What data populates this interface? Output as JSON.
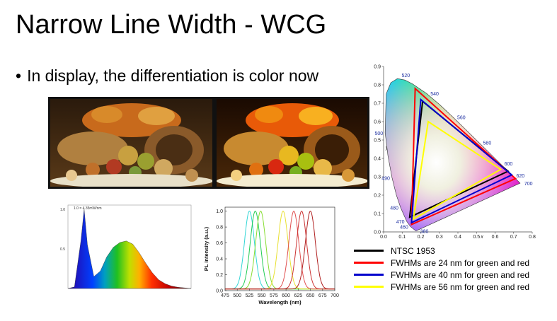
{
  "slide": {
    "title": "Narrow Line Width - WCG",
    "bullet": "In display, the differentiation is color now"
  },
  "photos": [
    {
      "name": "photo-standard-gamut",
      "subject": "autumn-fruit-cornucopia"
    },
    {
      "name": "photo-wide-color-gamut",
      "subject": "autumn-fruit-cornucopia"
    }
  ],
  "colors": {
    "ntsc": "#000000",
    "fwhm24": "#ff0000",
    "fwhm40": "#0000cc",
    "fwhm56": "#ffff00"
  },
  "chart_data": [
    {
      "type": "line",
      "name": "led-spectrum",
      "note": "broad phosphor white LED spectrum with blue peak; tick labels illegible at this resolution",
      "x": [
        400,
        420,
        440,
        450,
        460,
        480,
        500,
        520,
        540,
        560,
        580,
        600,
        620,
        640,
        660,
        680,
        700,
        720,
        740,
        780
      ],
      "values": [
        0.0,
        0.02,
        0.6,
        1.0,
        0.55,
        0.15,
        0.22,
        0.4,
        0.52,
        0.58,
        0.6,
        0.56,
        0.45,
        0.32,
        0.2,
        0.11,
        0.06,
        0.03,
        0.015,
        0.0
      ],
      "y_ticks": [
        "1.0",
        "0.5"
      ],
      "annotation": "1.0 = 4.35mW/nm"
    },
    {
      "type": "line",
      "name": "quantum-dot-pl-spectra",
      "ylabel": "PL intensity (a.u.)",
      "xlabel": "Wavelength (nm)",
      "xlim": [
        475,
        700
      ],
      "ylim": [
        0.0,
        1.05
      ],
      "x_ticks": [
        475,
        500,
        525,
        550,
        575,
        600,
        625,
        650,
        675,
        700
      ],
      "y_ticks": [
        "0.0",
        "0.2",
        "0.4",
        "0.6",
        "0.8",
        "1.0"
      ],
      "series": [
        {
          "peak": 525,
          "fwhm": 24,
          "color": "#33d6d6"
        },
        {
          "peak": 537,
          "fwhm": 24,
          "color": "#22cc55"
        },
        {
          "peak": 548,
          "fwhm": 24,
          "color": "#88dd33"
        },
        {
          "peak": 594,
          "fwhm": 24,
          "color": "#e8e030"
        },
        {
          "peak": 616,
          "fwhm": 24,
          "color": "#e05050"
        },
        {
          "peak": 632,
          "fwhm": 24,
          "color": "#cc3333"
        },
        {
          "peak": 650,
          "fwhm": 24,
          "color": "#b02020"
        }
      ]
    },
    {
      "type": "scatter",
      "name": "cie-1931-chromaticity",
      "xlabel": "x",
      "ylabel": "y",
      "xlim": [
        0.0,
        0.8
      ],
      "ylim": [
        0.0,
        0.9
      ],
      "x_ticks": [
        "0.0",
        "0.1",
        "0.2",
        "0.3",
        "0.4",
        "0.5",
        "0.6",
        "0.7",
        "0.8"
      ],
      "y_ticks": [
        "0.0",
        "0.1",
        "0.2",
        "0.3",
        "0.4",
        "0.5",
        "0.6",
        "0.7",
        "0.8",
        "0.9"
      ],
      "locus": [
        [
          0.1741,
          0.005
        ],
        [
          0.144,
          0.0297
        ],
        [
          0.1241,
          0.0578
        ],
        [
          0.0913,
          0.1327
        ],
        [
          0.0687,
          0.2007
        ],
        [
          0.0454,
          0.295
        ],
        [
          0.0235,
          0.4127
        ],
        [
          0.0082,
          0.5384
        ],
        [
          0.0139,
          0.7502
        ],
        [
          0.0389,
          0.812
        ],
        [
          0.0743,
          0.8338
        ],
        [
          0.1142,
          0.8262
        ],
        [
          0.1547,
          0.8059
        ],
        [
          0.2296,
          0.7543
        ],
        [
          0.3016,
          0.6923
        ],
        [
          0.3731,
          0.6245
        ],
        [
          0.4441,
          0.5547
        ],
        [
          0.5125,
          0.4866
        ],
        [
          0.5752,
          0.4242
        ],
        [
          0.627,
          0.3725
        ],
        [
          0.6658,
          0.334
        ],
        [
          0.6915,
          0.3083
        ],
        [
          0.7079,
          0.292
        ],
        [
          0.7347,
          0.2653
        ]
      ],
      "wavelength_labels": [
        {
          "label": "380",
          "x": 0.1741,
          "y": 0.005
        },
        {
          "label": "460",
          "x": 0.144,
          "y": 0.0297
        },
        {
          "label": "470",
          "x": 0.1241,
          "y": 0.0578
        },
        {
          "label": "480",
          "x": 0.0913,
          "y": 0.1327
        },
        {
          "label": "490",
          "x": 0.0454,
          "y": 0.295
        },
        {
          "label": "500",
          "x": 0.0082,
          "y": 0.5384
        },
        {
          "label": "520",
          "x": 0.0743,
          "y": 0.8338
        },
        {
          "label": "540",
          "x": 0.2296,
          "y": 0.7543
        },
        {
          "label": "560",
          "x": 0.3731,
          "y": 0.6245
        },
        {
          "label": "580",
          "x": 0.5125,
          "y": 0.4866
        },
        {
          "label": "600",
          "x": 0.627,
          "y": 0.3725
        },
        {
          "label": "620",
          "x": 0.6915,
          "y": 0.3083
        },
        {
          "label": "700",
          "x": 0.7347,
          "y": 0.2653
        }
      ],
      "triangles": [
        {
          "key": "ntsc",
          "legend": "NTSC 1953",
          "points": [
            [
              0.67,
              0.33
            ],
            [
              0.21,
              0.71
            ],
            [
              0.14,
              0.08
            ]
          ]
        },
        {
          "key": "fwhm24",
          "legend": "FWHMs are 24 nm for green and red",
          "points": [
            [
              0.71,
              0.29
            ],
            [
              0.17,
              0.78
            ],
            [
              0.15,
              0.04
            ]
          ]
        },
        {
          "key": "fwhm40",
          "legend": "FWHMs are 40 nm for green and red",
          "points": [
            [
              0.69,
              0.31
            ],
            [
              0.2,
              0.72
            ],
            [
              0.15,
              0.05
            ]
          ]
        },
        {
          "key": "fwhm56",
          "legend": "FWHMs are 56 nm for green and red",
          "points": [
            [
              0.63,
              0.34
            ],
            [
              0.24,
              0.6
            ],
            [
              0.16,
              0.07
            ]
          ]
        }
      ]
    }
  ],
  "legend": [
    {
      "key": "ntsc",
      "label": "NTSC 1953",
      "color": "#000000"
    },
    {
      "key": "fwhm24",
      "label": "FWHMs are 24 nm for green and red",
      "color": "#ff0000"
    },
    {
      "key": "fwhm40",
      "label": "FWHMs are 40 nm for green and red",
      "color": "#0000cc"
    },
    {
      "key": "fwhm56",
      "label": "FWHMs are 56 nm for green and red",
      "color": "#ffff00"
    }
  ]
}
